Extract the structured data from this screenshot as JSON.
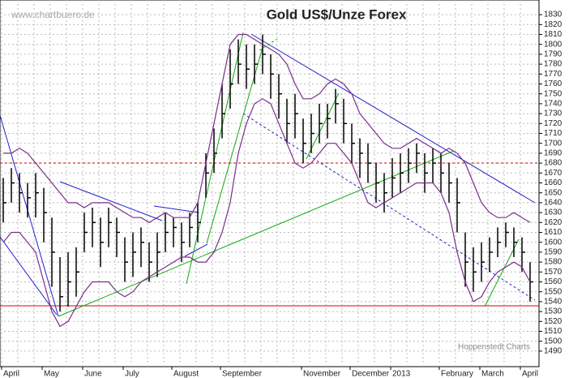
{
  "chart_data": {
    "type": "ohlc",
    "title": "Gold US$/Unze Forex",
    "watermark": "www.chartbuero.de",
    "source": "Hoppenstedt Charts",
    "categories": [
      "April",
      null,
      null,
      null,
      null,
      "May",
      null,
      null,
      null,
      null,
      "June",
      null,
      null,
      null,
      null,
      "July",
      null,
      null,
      null,
      null,
      null,
      "August",
      null,
      null,
      null,
      null,
      null,
      "September",
      null,
      null,
      null,
      null,
      null,
      null,
      null,
      null,
      null,
      "November",
      null,
      null,
      null,
      null,
      null,
      "December",
      null,
      null,
      null,
      null,
      "2013",
      null,
      null,
      null,
      null,
      null,
      "February",
      null,
      null,
      null,
      null,
      "March",
      null,
      null,
      null,
      null,
      "April",
      null
    ],
    "series": [
      {
        "name": "High",
        "color": "#000000",
        "values": [
          1665,
          1675,
          1670,
          1660,
          1670,
          1655,
          1625,
          1585,
          1590,
          1595,
          1630,
          1635,
          1625,
          1635,
          1625,
          1605,
          1610,
          1615,
          1600,
          1610,
          1630,
          1625,
          1620,
          1630,
          1640,
          1690,
          1715,
          1760,
          1795,
          1805,
          1800,
          1800,
          1810,
          1790,
          1770,
          1745,
          1750,
          1725,
          1730,
          1740,
          1740,
          1755,
          1745,
          1720,
          1705,
          1700,
          1680,
          1670,
          1685,
          1690,
          1695,
          1700,
          1690,
          1695,
          1690,
          1680,
          1665,
          1610,
          1595,
          1600,
          1605,
          1615,
          1620,
          1615,
          1605,
          1580
        ]
      },
      {
        "name": "Low",
        "color": "#000000",
        "values": [
          1620,
          1640,
          1630,
          1625,
          1625,
          1600,
          1555,
          1530,
          1535,
          1545,
          1590,
          1595,
          1575,
          1595,
          1585,
          1560,
          1565,
          1575,
          1560,
          1565,
          1590,
          1595,
          1580,
          1595,
          1600,
          1645,
          1670,
          1705,
          1735,
          1760,
          1755,
          1760,
          1770,
          1745,
          1725,
          1700,
          1705,
          1680,
          1690,
          1700,
          1705,
          1720,
          1700,
          1680,
          1665,
          1660,
          1640,
          1630,
          1645,
          1650,
          1660,
          1670,
          1650,
          1660,
          1650,
          1640,
          1610,
          1555,
          1550,
          1560,
          1570,
          1585,
          1595,
          1585,
          1570,
          1540
        ]
      },
      {
        "name": "Close",
        "color": "#000000",
        "values": [
          1640,
          1660,
          1650,
          1645,
          1650,
          1630,
          1590,
          1545,
          1560,
          1570,
          1610,
          1620,
          1600,
          1620,
          1610,
          1580,
          1590,
          1600,
          1580,
          1590,
          1610,
          1615,
          1600,
          1615,
          1620,
          1670,
          1690,
          1730,
          1760,
          1780,
          1775,
          1780,
          1790,
          1770,
          1750,
          1720,
          1730,
          1700,
          1710,
          1720,
          1725,
          1740,
          1720,
          1700,
          1690,
          1680,
          1660,
          1650,
          1665,
          1670,
          1680,
          1690,
          1670,
          1680,
          1670,
          1660,
          1640,
          1580,
          1570,
          1580,
          1590,
          1600,
          1610,
          1600,
          1590,
          1560
        ]
      },
      {
        "name": "Upper Band",
        "color": "#7b2d8b",
        "values": [
          1690,
          1690,
          1695,
          1690,
          1680,
          1670,
          1660,
          1650,
          1640,
          1640,
          1635,
          1640,
          1640,
          1640,
          1635,
          1630,
          1625,
          1625,
          1620,
          1625,
          1630,
          1625,
          1625,
          1625,
          1640,
          1680,
          1720,
          1760,
          1800,
          1810,
          1810,
          1805,
          1800,
          1795,
          1790,
          1780,
          1760,
          1745,
          1745,
          1750,
          1760,
          1765,
          1760,
          1750,
          1730,
          1720,
          1710,
          1700,
          1695,
          1695,
          1700,
          1705,
          1700,
          1695,
          1690,
          1695,
          1690,
          1680,
          1660,
          1640,
          1630,
          1625,
          1625,
          1630,
          1625,
          1620
        ]
      },
      {
        "name": "Lower Band",
        "color": "#7b2d8b",
        "values": [
          1600,
          1610,
          1610,
          1600,
          1590,
          1560,
          1530,
          1515,
          1520,
          1535,
          1550,
          1560,
          1560,
          1560,
          1550,
          1545,
          1550,
          1560,
          1565,
          1570,
          1575,
          1580,
          1585,
          1585,
          1580,
          1580,
          1590,
          1610,
          1640,
          1690,
          1720,
          1740,
          1745,
          1740,
          1720,
          1700,
          1680,
          1675,
          1680,
          1690,
          1700,
          1700,
          1690,
          1680,
          1660,
          1640,
          1635,
          1640,
          1645,
          1650,
          1655,
          1660,
          1660,
          1660,
          1650,
          1630,
          1590,
          1560,
          1540,
          1545,
          1560,
          1570,
          1575,
          1580,
          1575,
          1560
        ]
      }
    ],
    "ylim": [
      1485,
      1835
    ],
    "yticks": [
      1490,
      1500,
      1510,
      1520,
      1530,
      1540,
      1550,
      1560,
      1570,
      1580,
      1590,
      1600,
      1610,
      1620,
      1630,
      1640,
      1650,
      1660,
      1670,
      1680,
      1690,
      1700,
      1710,
      1720,
      1730,
      1740,
      1750,
      1760,
      1770,
      1780,
      1790,
      1800,
      1810,
      1820,
      1830
    ],
    "grid": true
  }
}
